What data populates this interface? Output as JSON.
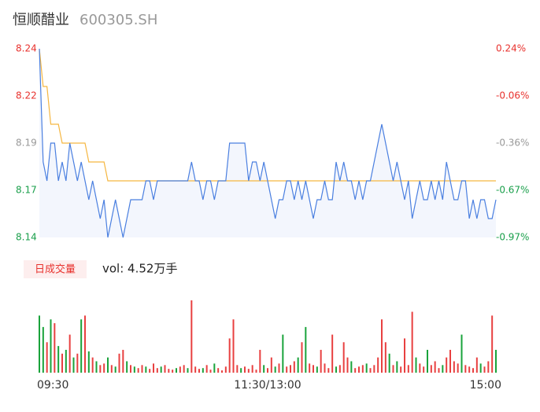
{
  "header": {
    "name": "恒顺醋业",
    "code": "600305.SH"
  },
  "chart_data": [
    {
      "type": "line",
      "ylim": [
        8.14,
        8.24
      ],
      "yticks": [
        8.24,
        {
          "value": 8.215,
          "label": "8.22"
        },
        8.19,
        {
          "value": 8.165,
          "label": "8.17"
        },
        8.14
      ],
      "y2lim": [
        -0.97,
        0.24
      ],
      "y2ticks": [
        {
          "value": 0.24,
          "label": "0.24%"
        },
        {
          "value": -0.0625,
          "label": "-0.06%"
        },
        {
          "value": -0.365,
          "label": "-0.36%"
        },
        {
          "value": -0.6675,
          "label": "-0.67%"
        },
        {
          "value": -0.97,
          "label": "-0.97%"
        }
      ],
      "tick_colors": [
        "#e8322e",
        "#e8322e",
        "#999999",
        "#1a9f4b",
        "#1a9f4b"
      ],
      "area_color": "#f3f6fd",
      "xlim": [
        0,
        240
      ],
      "x": [
        0,
        2,
        4,
        6,
        8,
        10,
        12,
        14,
        16,
        18,
        20,
        22,
        24,
        26,
        28,
        30,
        32,
        34,
        36,
        38,
        40,
        42,
        44,
        46,
        48,
        50,
        52,
        54,
        56,
        58,
        60,
        62,
        64,
        66,
        68,
        70,
        72,
        74,
        76,
        78,
        80,
        82,
        84,
        86,
        88,
        90,
        92,
        94,
        96,
        98,
        100,
        102,
        104,
        106,
        108,
        110,
        112,
        114,
        116,
        118,
        120,
        122,
        124,
        126,
        128,
        130,
        132,
        134,
        136,
        138,
        140,
        142,
        144,
        146,
        148,
        150,
        152,
        154,
        156,
        158,
        160,
        162,
        164,
        166,
        168,
        170,
        172,
        174,
        176,
        178,
        180,
        182,
        184,
        186,
        188,
        190,
        192,
        194,
        196,
        198,
        200,
        202,
        204,
        206,
        208,
        210,
        212,
        214,
        216,
        218,
        220,
        222,
        224,
        226,
        228,
        230,
        232,
        234,
        236,
        238,
        240
      ],
      "series": [
        {
          "color": "#4a7fe0",
          "values": [
            8.24,
            8.18,
            8.17,
            8.19,
            8.19,
            8.17,
            8.18,
            8.17,
            8.19,
            8.18,
            8.17,
            8.18,
            8.17,
            8.16,
            8.17,
            8.16,
            8.15,
            8.16,
            8.14,
            8.15,
            8.16,
            8.15,
            8.14,
            8.15,
            8.16,
            8.16,
            8.16,
            8.16,
            8.17,
            8.17,
            8.16,
            8.17,
            8.17,
            8.17,
            8.17,
            8.17,
            8.17,
            8.17,
            8.17,
            8.17,
            8.18,
            8.17,
            8.17,
            8.16,
            8.17,
            8.17,
            8.16,
            8.17,
            8.17,
            8.17,
            8.19,
            8.19,
            8.19,
            8.19,
            8.19,
            8.17,
            8.18,
            8.18,
            8.17,
            8.18,
            8.17,
            8.16,
            8.15,
            8.16,
            8.16,
            8.17,
            8.17,
            8.16,
            8.17,
            8.16,
            8.17,
            8.16,
            8.15,
            8.16,
            8.16,
            8.17,
            8.16,
            8.16,
            8.18,
            8.17,
            8.18,
            8.17,
            8.17,
            8.16,
            8.17,
            8.16,
            8.17,
            8.17,
            8.18,
            8.19,
            8.2,
            8.19,
            8.18,
            8.17,
            8.18,
            8.17,
            8.16,
            8.17,
            8.15,
            8.16,
            8.17,
            8.16,
            8.16,
            8.17,
            8.16,
            8.17,
            8.16,
            8.18,
            8.17,
            8.16,
            8.16,
            8.17,
            8.17,
            8.15,
            8.16,
            8.15,
            8.16,
            8.16,
            8.15,
            8.15,
            8.16
          ]
        },
        {
          "color": "#f5b640",
          "values": [
            8.24,
            8.22,
            8.22,
            8.2,
            8.2,
            8.2,
            8.19,
            8.19,
            8.19,
            8.19,
            8.19,
            8.19,
            8.19,
            8.18,
            8.18,
            8.18,
            8.18,
            8.18,
            8.17,
            8.17,
            8.17,
            8.17,
            8.17,
            8.17,
            8.17,
            8.17,
            8.17,
            8.17,
            8.17,
            8.17,
            8.17,
            8.17,
            8.17,
            8.17,
            8.17,
            8.17,
            8.17,
            8.17,
            8.17,
            8.17,
            8.17,
            8.17,
            8.17,
            8.17,
            8.17,
            8.17,
            8.17,
            8.17,
            8.17,
            8.17,
            8.17,
            8.17,
            8.17,
            8.17,
            8.17,
            8.17,
            8.17,
            8.17,
            8.17,
            8.17,
            8.17,
            8.17,
            8.17,
            8.17,
            8.17,
            8.17,
            8.17,
            8.17,
            8.17,
            8.17,
            8.17,
            8.17,
            8.17,
            8.17,
            8.17,
            8.17,
            8.17,
            8.17,
            8.17,
            8.17,
            8.17,
            8.17,
            8.17,
            8.17,
            8.17,
            8.17,
            8.17,
            8.17,
            8.17,
            8.17,
            8.17,
            8.17,
            8.17,
            8.17,
            8.17,
            8.17,
            8.17,
            8.17,
            8.17,
            8.17,
            8.17,
            8.17,
            8.17,
            8.17,
            8.17,
            8.17,
            8.17,
            8.17,
            8.17,
            8.17,
            8.17,
            8.17,
            8.17,
            8.17,
            8.17,
            8.17,
            8.17,
            8.17,
            8.17,
            8.17,
            8.17
          ]
        }
      ]
    },
    {
      "type": "bar",
      "label": "日成交量",
      "volume_text": "vol: 4.52万手",
      "xlim": [
        0,
        240
      ],
      "xticks": [
        {
          "value": 0,
          "label": "09:30"
        },
        {
          "value": 120,
          "label": "11:30/13:00"
        },
        {
          "value": 240,
          "label": "15:00"
        }
      ],
      "values": [
        75,
        60,
        40,
        70,
        65,
        35,
        25,
        30,
        50,
        20,
        25,
        70,
        75,
        28,
        20,
        15,
        10,
        12,
        20,
        10,
        8,
        25,
        30,
        15,
        10,
        8,
        6,
        10,
        8,
        5,
        12,
        6,
        8,
        10,
        5,
        4,
        6,
        8,
        10,
        6,
        95,
        8,
        5,
        6,
        10,
        4,
        12,
        6,
        3,
        8,
        45,
        70,
        10,
        6,
        8,
        5,
        10,
        4,
        30,
        10,
        6,
        20,
        8,
        12,
        50,
        8,
        10,
        15,
        20,
        40,
        60,
        12,
        10,
        8,
        30,
        12,
        6,
        50,
        8,
        10,
        40,
        20,
        15,
        6,
        8,
        10,
        12,
        6,
        10,
        20,
        70,
        40,
        25,
        10,
        15,
        8,
        45,
        10,
        80,
        20,
        12,
        8,
        30,
        10,
        15,
        6,
        10,
        20,
        30,
        15,
        12,
        50,
        10,
        8,
        6,
        20,
        12,
        8,
        15,
        75,
        30
      ],
      "colors": [
        "#1aa33b",
        "#1aa33b",
        "#e84040",
        "#1aa33b",
        "#e84040",
        "#1aa33b",
        "#e84040",
        "#1aa33b",
        "#e84040",
        "#1aa33b",
        "#e84040",
        "#1aa33b",
        "#e84040",
        "#1aa33b",
        "#e84040",
        "#1aa33b",
        "#e84040",
        "#e84040",
        "#1aa33b",
        "#e84040",
        "#1aa33b",
        "#e84040",
        "#e84040",
        "#1aa33b",
        "#e84040",
        "#1aa33b",
        "#e84040",
        "#e84040",
        "#1aa33b",
        "#e84040",
        "#e84040",
        "#e84040",
        "#1aa33b",
        "#e84040",
        "#e84040",
        "#e84040",
        "#1aa33b",
        "#e84040",
        "#e84040",
        "#1aa33b",
        "#e84040",
        "#e84040",
        "#e84040",
        "#1aa33b",
        "#e84040",
        "#e84040",
        "#1aa33b",
        "#e84040",
        "#e84040",
        "#e84040",
        "#e84040",
        "#e84040",
        "#e84040",
        "#1aa33b",
        "#e84040",
        "#e84040",
        "#e84040",
        "#e84040",
        "#e84040",
        "#1aa33b",
        "#e84040",
        "#e84040",
        "#1aa33b",
        "#e84040",
        "#1aa33b",
        "#e84040",
        "#e84040",
        "#e84040",
        "#1aa33b",
        "#e84040",
        "#1aa33b",
        "#e84040",
        "#e84040",
        "#1aa33b",
        "#e84040",
        "#e84040",
        "#e84040",
        "#e84040",
        "#1aa33b",
        "#e84040",
        "#e84040",
        "#e84040",
        "#1aa33b",
        "#e84040",
        "#e84040",
        "#e84040",
        "#1aa33b",
        "#e84040",
        "#e84040",
        "#e84040",
        "#e84040",
        "#e84040",
        "#1aa33b",
        "#e84040",
        "#1aa33b",
        "#e84040",
        "#e84040",
        "#e84040",
        "#e84040",
        "#1aa33b",
        "#e84040",
        "#e84040",
        "#1aa33b",
        "#e84040",
        "#e84040",
        "#e84040",
        "#1aa33b",
        "#e84040",
        "#e84040",
        "#e84040",
        "#e84040",
        "#1aa33b",
        "#e84040",
        "#e84040",
        "#e84040",
        "#e84040",
        "#1aa33b",
        "#e84040",
        "#e84040",
        "#e84040",
        "#1aa33b"
      ]
    }
  ]
}
